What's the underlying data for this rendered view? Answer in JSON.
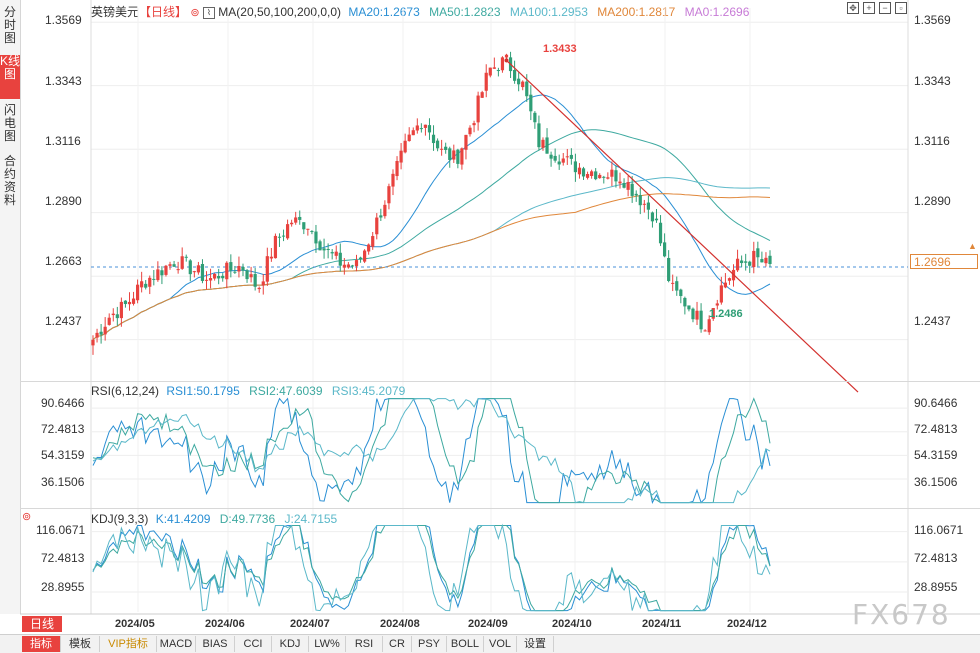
{
  "sidebar": {
    "tabs": [
      {
        "label": "分时图"
      },
      {
        "label": "K线图"
      },
      {
        "label": "闪电图"
      },
      {
        "label": "合约资料"
      }
    ]
  },
  "header": {
    "symbol": "英镑美元",
    "period": "【日线】",
    "ma_label": "MA(20,50,100,200,0,0)",
    "ma20": "MA20:1.2673",
    "ma50": "MA50:1.2823",
    "ma100": "MA100:1.2953",
    "ma200": "MA200:1.2817",
    "ma0": "MA0:1.2696"
  },
  "price_axis": {
    "ticks": [
      "1.3569",
      "1.3343",
      "1.3116",
      "1.2890",
      "1.2663",
      "1.2437"
    ],
    "current": "1.2696"
  },
  "annotations": {
    "high": "1.3433",
    "low": "1.2486"
  },
  "rsi": {
    "label": "RSI(6,12,24)",
    "rsi1": "RSI1:50.1795",
    "rsi2": "RSI2:47.6039",
    "rsi3": "RSI3:45.2079",
    "ticks": [
      "90.6466",
      "72.4813",
      "54.3159",
      "36.1506"
    ]
  },
  "kdj": {
    "label": "KDJ(9,3,3)",
    "k": "K:41.4209",
    "d": "D:49.7736",
    "j": "J:24.7155",
    "ticks": [
      "116.0671",
      "72.4813",
      "28.8955"
    ]
  },
  "x_axis": {
    "labels": [
      "2024/05",
      "2024/06",
      "2024/07",
      "2024/08",
      "2024/09",
      "2024/10",
      "2024/11",
      "2024/12"
    ]
  },
  "bottom_tabs": [
    {
      "label": "日线",
      "active": true
    },
    {
      "label": "指标"
    },
    {
      "label": "模板"
    },
    {
      "label": "VIP指标"
    },
    {
      "label": "MACD"
    },
    {
      "label": "BIAS"
    },
    {
      "label": "CCI"
    },
    {
      "label": "KDJ"
    },
    {
      "label": "LW%"
    },
    {
      "label": "RSI"
    },
    {
      "label": "CR"
    },
    {
      "label": "PSY"
    },
    {
      "label": "BOLL"
    },
    {
      "label": "VOL"
    },
    {
      "label": "设置"
    }
  ],
  "watermark": "FX678",
  "colors": {
    "up": "#e8423e",
    "down": "#2f9e76",
    "ma20": "#2a8fd4",
    "ma50": "#3ea9a0",
    "ma100": "#5bb8c9",
    "ma200": "#e0873a",
    "trend": "#d3312e"
  },
  "chart_data": {
    "type": "candlestick",
    "series_anchor_closes": [
      1.2437,
      1.252,
      1.256,
      1.264,
      1.268,
      1.272,
      1.269,
      1.265,
      1.268,
      1.27,
      1.262,
      1.278,
      1.286,
      1.285,
      1.276,
      1.271,
      1.27,
      1.283,
      1.298,
      1.314,
      1.323,
      1.311,
      1.308,
      1.322,
      1.34,
      1.3433,
      1.335,
      1.314,
      1.31,
      1.306,
      1.304,
      1.303,
      1.302,
      1.295,
      1.288,
      1.262,
      1.256,
      1.2486,
      1.262,
      1.27,
      1.273,
      1.2696
    ],
    "ylim": [
      1.23,
      1.362
    ],
    "trendline": {
      "from_price": 1.3433,
      "to_price": 1.225
    },
    "rsi_ylim": [
      20,
      100
    ],
    "kdj_ylim": [
      0,
      130
    ]
  }
}
